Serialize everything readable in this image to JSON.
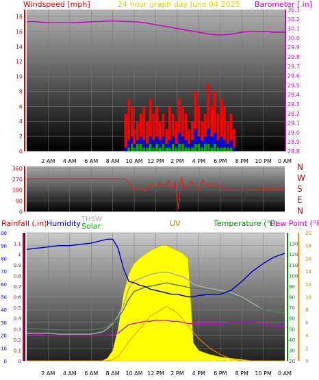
{
  "header": {
    "wind_label": "Windspeed [mph]",
    "title": "24 hour graph day   June 04 2025",
    "baro_label": "Barometer [.in]"
  },
  "x_ticks": [
    "2 AM",
    "4 AM",
    "6 AM",
    "8 AM",
    "10 AM",
    "12 PM",
    "2 PM",
    "4 PM",
    "6 PM",
    "8 PM",
    "10 PM",
    "0 AM"
  ],
  "colors": {
    "wind_label": "#cc0000",
    "title": "#d6d600",
    "baro": "#cc00cc",
    "gust": "#ff0000",
    "avg_wind": "#0000ff",
    "low_wind": "#00aa00",
    "direction": "#dd2222",
    "compass": "#cc0000",
    "rain": "#cc0000",
    "humidity": "#0000cc",
    "thsw": "#aaaaaa",
    "solar": "#00aa00",
    "uv": "#cc7700",
    "temperature": "#008800",
    "dewpoint": "#cc00cc",
    "solar_fill": "#ffff00",
    "uv_line": "#ff8800"
  },
  "chart_data": [
    {
      "type": "line",
      "title": "24 hour graph day   June 04 2025",
      "ylabel": "Windspeed [mph]",
      "y2label": "Barometer [.in]",
      "ylim": [
        0,
        18
      ],
      "y_ticks": [
        0,
        2,
        4,
        6,
        8,
        10,
        12,
        14,
        16,
        18
      ],
      "y2lim": [
        28.8,
        30.3
      ],
      "y2_ticks": [
        28.8,
        28.9,
        29.0,
        29.1,
        29.2,
        29.3,
        29.4,
        29.5,
        29.6,
        29.7,
        29.8,
        29.9,
        30.0,
        30.1,
        30.2,
        30.3
      ],
      "x_hours": [
        0,
        0.5,
        1,
        2,
        3,
        4,
        5,
        6,
        7,
        8,
        9,
        10,
        11,
        12,
        13,
        14,
        15,
        16,
        17,
        18,
        19,
        20,
        21,
        22,
        23,
        23.5,
        24
      ],
      "barometer": [
        30.17,
        30.175,
        30.17,
        30.16,
        30.16,
        30.16,
        30.165,
        30.17,
        30.175,
        30.18,
        30.175,
        30.17,
        30.16,
        30.14,
        30.12,
        30.1,
        30.08,
        30.06,
        30.04,
        30.03,
        30.04,
        30.06,
        30.07,
        30.07,
        30.06,
        30.06,
        30.06
      ],
      "wind_x_hours": [
        9.2,
        9.5,
        9.8,
        10.0,
        10.3,
        10.6,
        10.9,
        11.2,
        11.5,
        11.8,
        12.1,
        12.4,
        12.7,
        13.0,
        13.3,
        13.6,
        13.9,
        14.2,
        14.5,
        14.8,
        15.1,
        15.4,
        15.7,
        16.0,
        16.3,
        16.6,
        16.9,
        17.2,
        17.5,
        17.8,
        18.1,
        18.4,
        18.7,
        19.0,
        19.3
      ],
      "gust": [
        5,
        7,
        6,
        3,
        4,
        5,
        6,
        4,
        7,
        5,
        6,
        4,
        5,
        3,
        6,
        5,
        4,
        7,
        6,
        5,
        3,
        4,
        8,
        6,
        4,
        5,
        9,
        6,
        8,
        5,
        7,
        6,
        4,
        5,
        3
      ],
      "average_wind": [
        0.5,
        1.5,
        2,
        1,
        1.5,
        2,
        1.5,
        1,
        2,
        1.5,
        2,
        1.5,
        2,
        1,
        1.5,
        2,
        1,
        2.5,
        2,
        1.5,
        1,
        1.5,
        3,
        2,
        1.5,
        2,
        3,
        2,
        2.5,
        1.5,
        2,
        1.5,
        1,
        1.5,
        0.5
      ],
      "low_wind": [
        0,
        0.5,
        1,
        0.5,
        1,
        1,
        0.5,
        0.5,
        1,
        0.5,
        1,
        0.5,
        1,
        0.5,
        0.5,
        1,
        0.5,
        1,
        1,
        0.5,
        0.5,
        0.5,
        1,
        1,
        0.5,
        1,
        1,
        0.5,
        1,
        0.5,
        0.5,
        0.5,
        0.5,
        0.5,
        0
      ]
    },
    {
      "type": "line",
      "ylabel": "Wind direction",
      "ylim": [
        0,
        360
      ],
      "y_ticks": [
        0,
        90,
        180,
        270,
        360
      ],
      "compass": [
        "N",
        "W",
        "S",
        "E",
        "N"
      ],
      "x_hours": [
        0,
        8,
        9.2,
        9.6,
        10,
        10.5,
        11,
        11.5,
        12,
        12.4,
        12.8,
        13.2,
        13.5,
        13.8,
        14.1,
        14.4,
        14.7,
        15,
        15.3,
        15.6,
        16,
        16.4,
        16.8,
        17.2,
        17.6,
        18,
        18.5,
        19,
        20,
        22,
        24
      ],
      "direction": [
        272,
        272,
        272,
        230,
        185,
        200,
        170,
        225,
        200,
        240,
        210,
        260,
        195,
        240,
        20,
        290,
        180,
        210,
        250,
        220,
        180,
        260,
        210,
        240,
        200,
        220,
        185,
        180,
        180,
        185,
        185
      ]
    },
    {
      "type": "area",
      "legend": [
        "Rainfall (.in)",
        "Humidity",
        "THSW",
        "Solar",
        "UV",
        "Temperature (°F)",
        "Dew Point (°F)"
      ],
      "rain_ylim": [
        0,
        1.2
      ],
      "rain_ticks": [
        0,
        0.1,
        0.2,
        0.3,
        0.4,
        0.5,
        0.6,
        0.7,
        0.8,
        0.9,
        1.0,
        1.1
      ],
      "humidity_ylim": [
        0,
        100
      ],
      "humidity_ticks": [
        0,
        10,
        20,
        30,
        40,
        50,
        60,
        70,
        80,
        90,
        100
      ],
      "temp_ylim": [
        20,
        140
      ],
      "temp_ticks": [
        20,
        30,
        40,
        50,
        60,
        70,
        80,
        90,
        100,
        110,
        120,
        130
      ],
      "uv_ylim": [
        0,
        20
      ],
      "uv_ticks": [
        0,
        2,
        4,
        6,
        8,
        10,
        12,
        14,
        16,
        18,
        20
      ],
      "x_hours": [
        0,
        1,
        2,
        3,
        4,
        5,
        6,
        7,
        7.5,
        8,
        8.5,
        9,
        9.5,
        10,
        10.5,
        11,
        11.5,
        12,
        12.5,
        13,
        13.5,
        14,
        14.5,
        15,
        15.5,
        16,
        17,
        18,
        19,
        20,
        21,
        22,
        23,
        24
      ],
      "humidity": [
        87,
        88,
        89,
        90,
        90,
        91,
        92,
        94,
        95,
        95,
        88,
        72,
        62,
        61,
        59,
        58,
        56,
        55,
        54,
        53,
        52,
        52,
        51,
        50,
        50,
        51,
        52,
        52,
        55,
        62,
        70,
        76,
        81,
        84
      ],
      "temperature": [
        50,
        50,
        49,
        49,
        49,
        49,
        49,
        50,
        52,
        56,
        60,
        68,
        78,
        85,
        87,
        89,
        90,
        91,
        92,
        93,
        92,
        91,
        90,
        89,
        88,
        88,
        86,
        84,
        82,
        78,
        72,
        68,
        66,
        65
      ],
      "thsw": [
        46,
        46,
        46,
        45,
        45,
        45,
        45,
        47,
        50,
        55,
        62,
        72,
        88,
        95,
        97,
        99,
        101,
        102,
        103,
        103,
        102,
        100,
        99,
        96,
        92,
        90,
        88,
        86,
        84,
        80,
        74,
        68,
        66,
        65
      ],
      "dewpoint": [
        45,
        45,
        44,
        44,
        44,
        44,
        44,
        44,
        44,
        45,
        46,
        50,
        54,
        55,
        56,
        57,
        57,
        58,
        58,
        58,
        57,
        57,
        56,
        55,
        55,
        55,
        55,
        55,
        56,
        56,
        56,
        55,
        53,
        52
      ],
      "solar": [
        0,
        0,
        0,
        0,
        0,
        0,
        0,
        0,
        2,
        8,
        25,
        52,
        68,
        76,
        80,
        83,
        86,
        88,
        90,
        90,
        88,
        86,
        84,
        80,
        14,
        8,
        5,
        3,
        2,
        1,
        0,
        0,
        0,
        0
      ],
      "uv": [
        0,
        0,
        0,
        0,
        0,
        0,
        0,
        0,
        0,
        0.2,
        0.7,
        1.8,
        3,
        4,
        5,
        6,
        7,
        7.5,
        8,
        8.5,
        8,
        7.5,
        6.5,
        5.5,
        4.5,
        3.5,
        2,
        1,
        0.3,
        0,
        0,
        0,
        0,
        0
      ]
    }
  ]
}
